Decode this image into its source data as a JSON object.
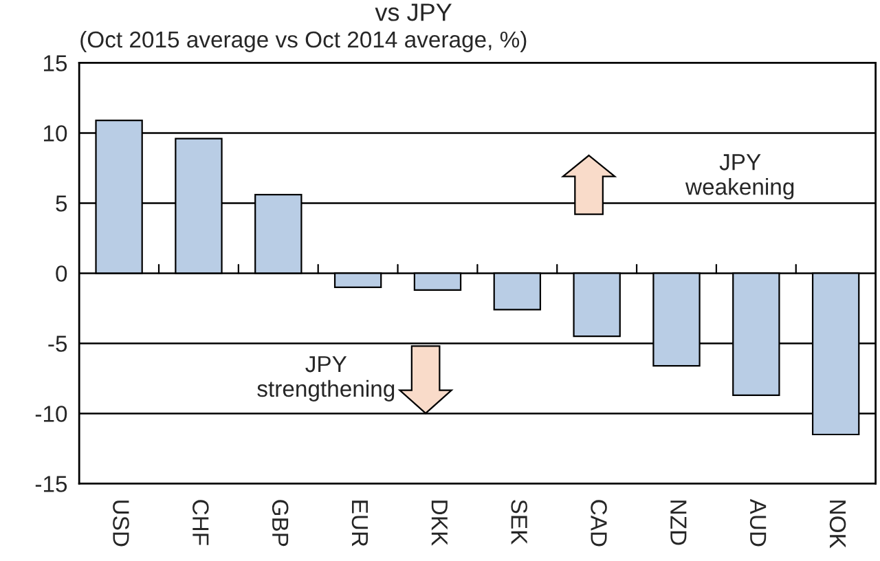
{
  "chart_data": {
    "type": "bar",
    "title": "vs JPY",
    "subtitle": "(Oct 2015 average vs Oct 2014 average, %)",
    "categories": [
      "USD",
      "CHF",
      "GBP",
      "EUR",
      "DKK",
      "SEK",
      "CAD",
      "NZD",
      "AUD",
      "NOK"
    ],
    "values": [
      10.9,
      9.6,
      5.6,
      -1.0,
      -1.2,
      -2.6,
      -4.5,
      -6.6,
      -8.7,
      -11.5
    ],
    "color": "#b9cde5",
    "ylim": [
      -15,
      15
    ],
    "yticks": [
      -15,
      -10,
      -5,
      0,
      5,
      10,
      15
    ],
    "grid": "y",
    "legend": false,
    "annotations": [
      "JPY\nweakening",
      "JPY\nstrengthening"
    ]
  }
}
